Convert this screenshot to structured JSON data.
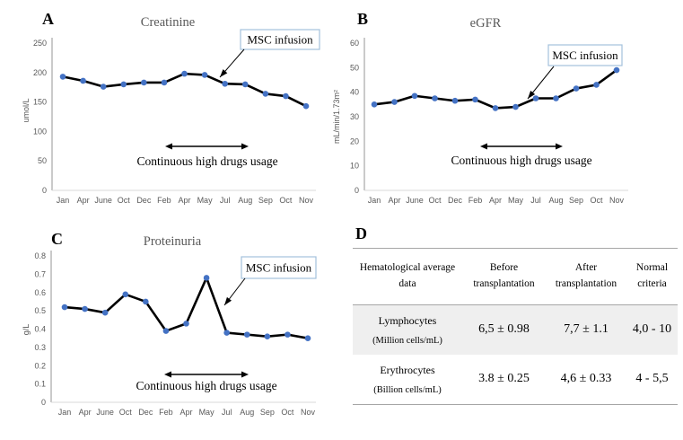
{
  "panels": {
    "a_label": "A",
    "b_label": "B",
    "c_label": "C",
    "d_label": "D"
  },
  "annotations": {
    "msc_label": "MSC infusion",
    "drugs_label": "Continuous high drugs usage"
  },
  "colors": {
    "marker": "#4472c4",
    "line": "#000000",
    "axis": "#a6a6a6",
    "grid": "#d9d9d9",
    "tick_text": "#595959",
    "title_text": "#595959",
    "msc_border": "#a3c1dd",
    "row_shade": "#efefef",
    "table_rule": "#a6a6a6"
  },
  "chart_data": [
    {
      "panel": "A",
      "type": "line",
      "title": "Creatinine",
      "ylabel": "umol/L",
      "xlabel": "",
      "categories": [
        "Jan",
        "Apr",
        "June",
        "Oct",
        "Dec",
        "Feb",
        "Apr",
        "May",
        "Jul",
        "Aug",
        "Sep",
        "Oct",
        "Nov"
      ],
      "values": [
        193,
        186,
        176,
        180,
        183,
        183,
        198,
        196,
        181,
        180,
        164,
        160,
        143
      ],
      "ylim": [
        0,
        250
      ],
      "yticks": [
        "0",
        "50",
        "100",
        "150",
        "200",
        "250"
      ],
      "grid": false,
      "legend": false,
      "annotations": [
        "MSC infusion",
        "Continuous high drugs usage"
      ],
      "marker_color": "#4472c4",
      "line_color": "#000000"
    },
    {
      "panel": "B",
      "type": "line",
      "title": "eGFR",
      "ylabel": "mL/min/1.73m²",
      "xlabel": "",
      "categories": [
        "Jan",
        "Apr",
        "June",
        "Oct",
        "Dec",
        "Feb",
        "Apr",
        "May",
        "Jul",
        "Aug",
        "Sep",
        "Oct",
        "Nov"
      ],
      "values": [
        35,
        36,
        38.5,
        37.5,
        36.5,
        37,
        33.5,
        34,
        37.5,
        37.5,
        41.5,
        43,
        49
      ],
      "ylim": [
        0,
        60
      ],
      "yticks": [
        "0",
        "10",
        "20",
        "30",
        "40",
        "50",
        "60"
      ],
      "grid": false,
      "legend": false,
      "annotations": [
        "MSC infusion",
        "Continuous high drugs usage"
      ],
      "marker_color": "#4472c4",
      "line_color": "#000000"
    },
    {
      "panel": "C",
      "type": "line",
      "title": "Proteinuria",
      "ylabel": "g/L",
      "xlabel": "",
      "categories": [
        "Jan",
        "Apr",
        "June",
        "Oct",
        "Dec",
        "Feb",
        "Apr",
        "May",
        "Jul",
        "Aug",
        "Sep",
        "Oct",
        "Nov"
      ],
      "values": [
        0.52,
        0.51,
        0.49,
        0.59,
        0.55,
        0.39,
        0.43,
        0.68,
        0.38,
        0.37,
        0.36,
        0.37,
        0.35
      ],
      "ylim": [
        0,
        0.8
      ],
      "yticks": [
        "0",
        "0.1",
        "0.2",
        "0.3",
        "0.4",
        "0.5",
        "0.6",
        "0.7",
        "0.8"
      ],
      "grid": false,
      "legend": false,
      "annotations": [
        "MSC infusion",
        "Continuous high drugs usage"
      ],
      "marker_color": "#4472c4",
      "line_color": "#000000"
    }
  ],
  "table": {
    "headers": [
      "Hematological average data",
      "Before transplantation",
      "After transplantation",
      "Normal criteria"
    ],
    "rows": [
      {
        "name": "Lymphocytes",
        "unit": "(Million cells/mL)",
        "before": "6,5 ± 0.98",
        "after": "7,7 ± 1.1",
        "normal": "4,0 - 10"
      },
      {
        "name": "Erythrocytes",
        "unit": "(Billion cells/mL)",
        "before": "3.8 ± 0.25",
        "after": "4,6 ± 0.33",
        "normal": "4 - 5,5"
      }
    ]
  }
}
